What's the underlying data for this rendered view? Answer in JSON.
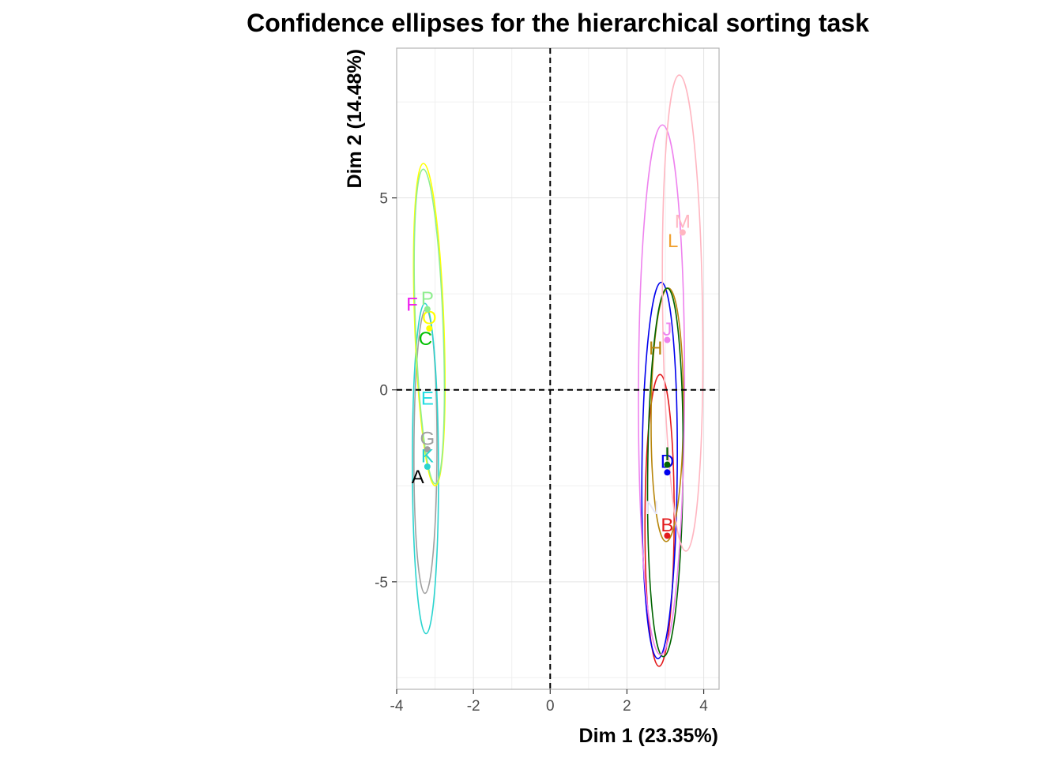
{
  "chart_data": {
    "type": "scatter",
    "title": "Confidence ellipses for the hierarchical sorting task",
    "xlabel": "Dim 1 (23.35%)",
    "ylabel": "Dim 2 (14.48%)",
    "xlim": [
      -4.0,
      4.4
    ],
    "ylim": [
      -7.8,
      8.9
    ],
    "xticks": [
      -4,
      -2,
      0,
      2,
      4
    ],
    "yticks": [
      -5,
      0,
      5
    ],
    "xtick_labels": [
      "-4",
      "-2",
      "0",
      "2",
      "4"
    ],
    "ytick_labels": [
      "-5",
      "0",
      "5"
    ],
    "grid": true,
    "reference_lines": {
      "x": 0,
      "y": 0,
      "style": "dashed"
    },
    "points": [
      {
        "label": "A",
        "x": -3.45,
        "y": -2.55,
        "color": "#000000",
        "dot": false,
        "ellipse": null
      },
      {
        "label": "B",
        "x": 3.05,
        "y": -3.8,
        "color": "#e31a1c",
        "dot": true,
        "ellipse": {
          "cx": 2.85,
          "cy": -3.4,
          "rx": 0.38,
          "ry": 3.8,
          "rot": 0.2
        }
      },
      {
        "label": "C",
        "x": -3.25,
        "y": 1.05,
        "color": "#00c000",
        "dot": false,
        "ellipse": null
      },
      {
        "label": "D",
        "x": 3.05,
        "y": -2.15,
        "color": "#0000ee",
        "dot": true,
        "ellipse": {
          "cx": 2.85,
          "cy": -2.1,
          "rx": 0.46,
          "ry": 4.9,
          "rot": 0.5
        }
      },
      {
        "label": "E",
        "x": -3.2,
        "y": -0.5,
        "color": "#22dde2",
        "dot": false,
        "ellipse": null
      },
      {
        "label": "F",
        "x": -3.6,
        "y": 1.95,
        "color": "#ee22ee",
        "dot": false,
        "ellipse": null
      },
      {
        "label": "G",
        "x": -3.2,
        "y": -1.55,
        "color": "#a0a0a0",
        "dot": true,
        "ellipse": {
          "cx": -3.25,
          "cy": -1.6,
          "rx": 0.3,
          "ry": 3.7,
          "rot": 0.2
        }
      },
      {
        "label": "H",
        "x": 2.75,
        "y": 0.8,
        "color": "#b8860b",
        "dot": false,
        "ellipse": {
          "cx": 3.05,
          "cy": -0.65,
          "rx": 0.42,
          "ry": 3.3,
          "rot": 0.5
        }
      },
      {
        "label": "I",
        "x": 3.05,
        "y": -1.95,
        "color": "#006400",
        "dot": true,
        "ellipse": {
          "cx": 3.0,
          "cy": -2.15,
          "rx": 0.46,
          "ry": 4.8,
          "rot": 0.6
        }
      },
      {
        "label": "J",
        "x": 3.05,
        "y": 1.3,
        "color": "#ee82ee",
        "dot": true,
        "ellipse": {
          "cx": 2.9,
          "cy": 0.0,
          "rx": 0.6,
          "ry": 6.9,
          "rot": 0.2
        }
      },
      {
        "label": "K",
        "x": -3.2,
        "y": -2.0,
        "color": "#2ad4cf",
        "dot": true,
        "ellipse": {
          "cx": -3.25,
          "cy": -2.05,
          "rx": 0.34,
          "ry": 4.3,
          "rot": -0.2
        }
      },
      {
        "label": "L",
        "x": 3.2,
        "y": 3.6,
        "color": "#f0a030",
        "dot": false,
        "ellipse": null
      },
      {
        "label": "M",
        "x": 3.45,
        "y": 4.1,
        "color": "#ffb6c1",
        "dot": true,
        "ellipse": {
          "cx": 3.45,
          "cy": 2.0,
          "rx": 0.52,
          "ry": 6.2,
          "rot": -0.8
        }
      },
      {
        "label": "N",
        "x": 2.65,
        "y": -3.35,
        "color": "#e6e6fa",
        "dot": false,
        "ellipse": null
      },
      {
        "label": "O",
        "x": -3.15,
        "y": 1.6,
        "color": "#ffff00",
        "dot": true,
        "ellipse": {
          "cx": -3.15,
          "cy": 1.7,
          "rx": 0.38,
          "ry": 4.2,
          "rot": -2.1
        }
      },
      {
        "label": "P",
        "x": -3.2,
        "y": 2.1,
        "color": "#90ee90",
        "dot": true,
        "ellipse": {
          "cx": -3.15,
          "cy": 1.65,
          "rx": 0.36,
          "ry": 4.1,
          "rot": -2.2
        }
      }
    ]
  }
}
